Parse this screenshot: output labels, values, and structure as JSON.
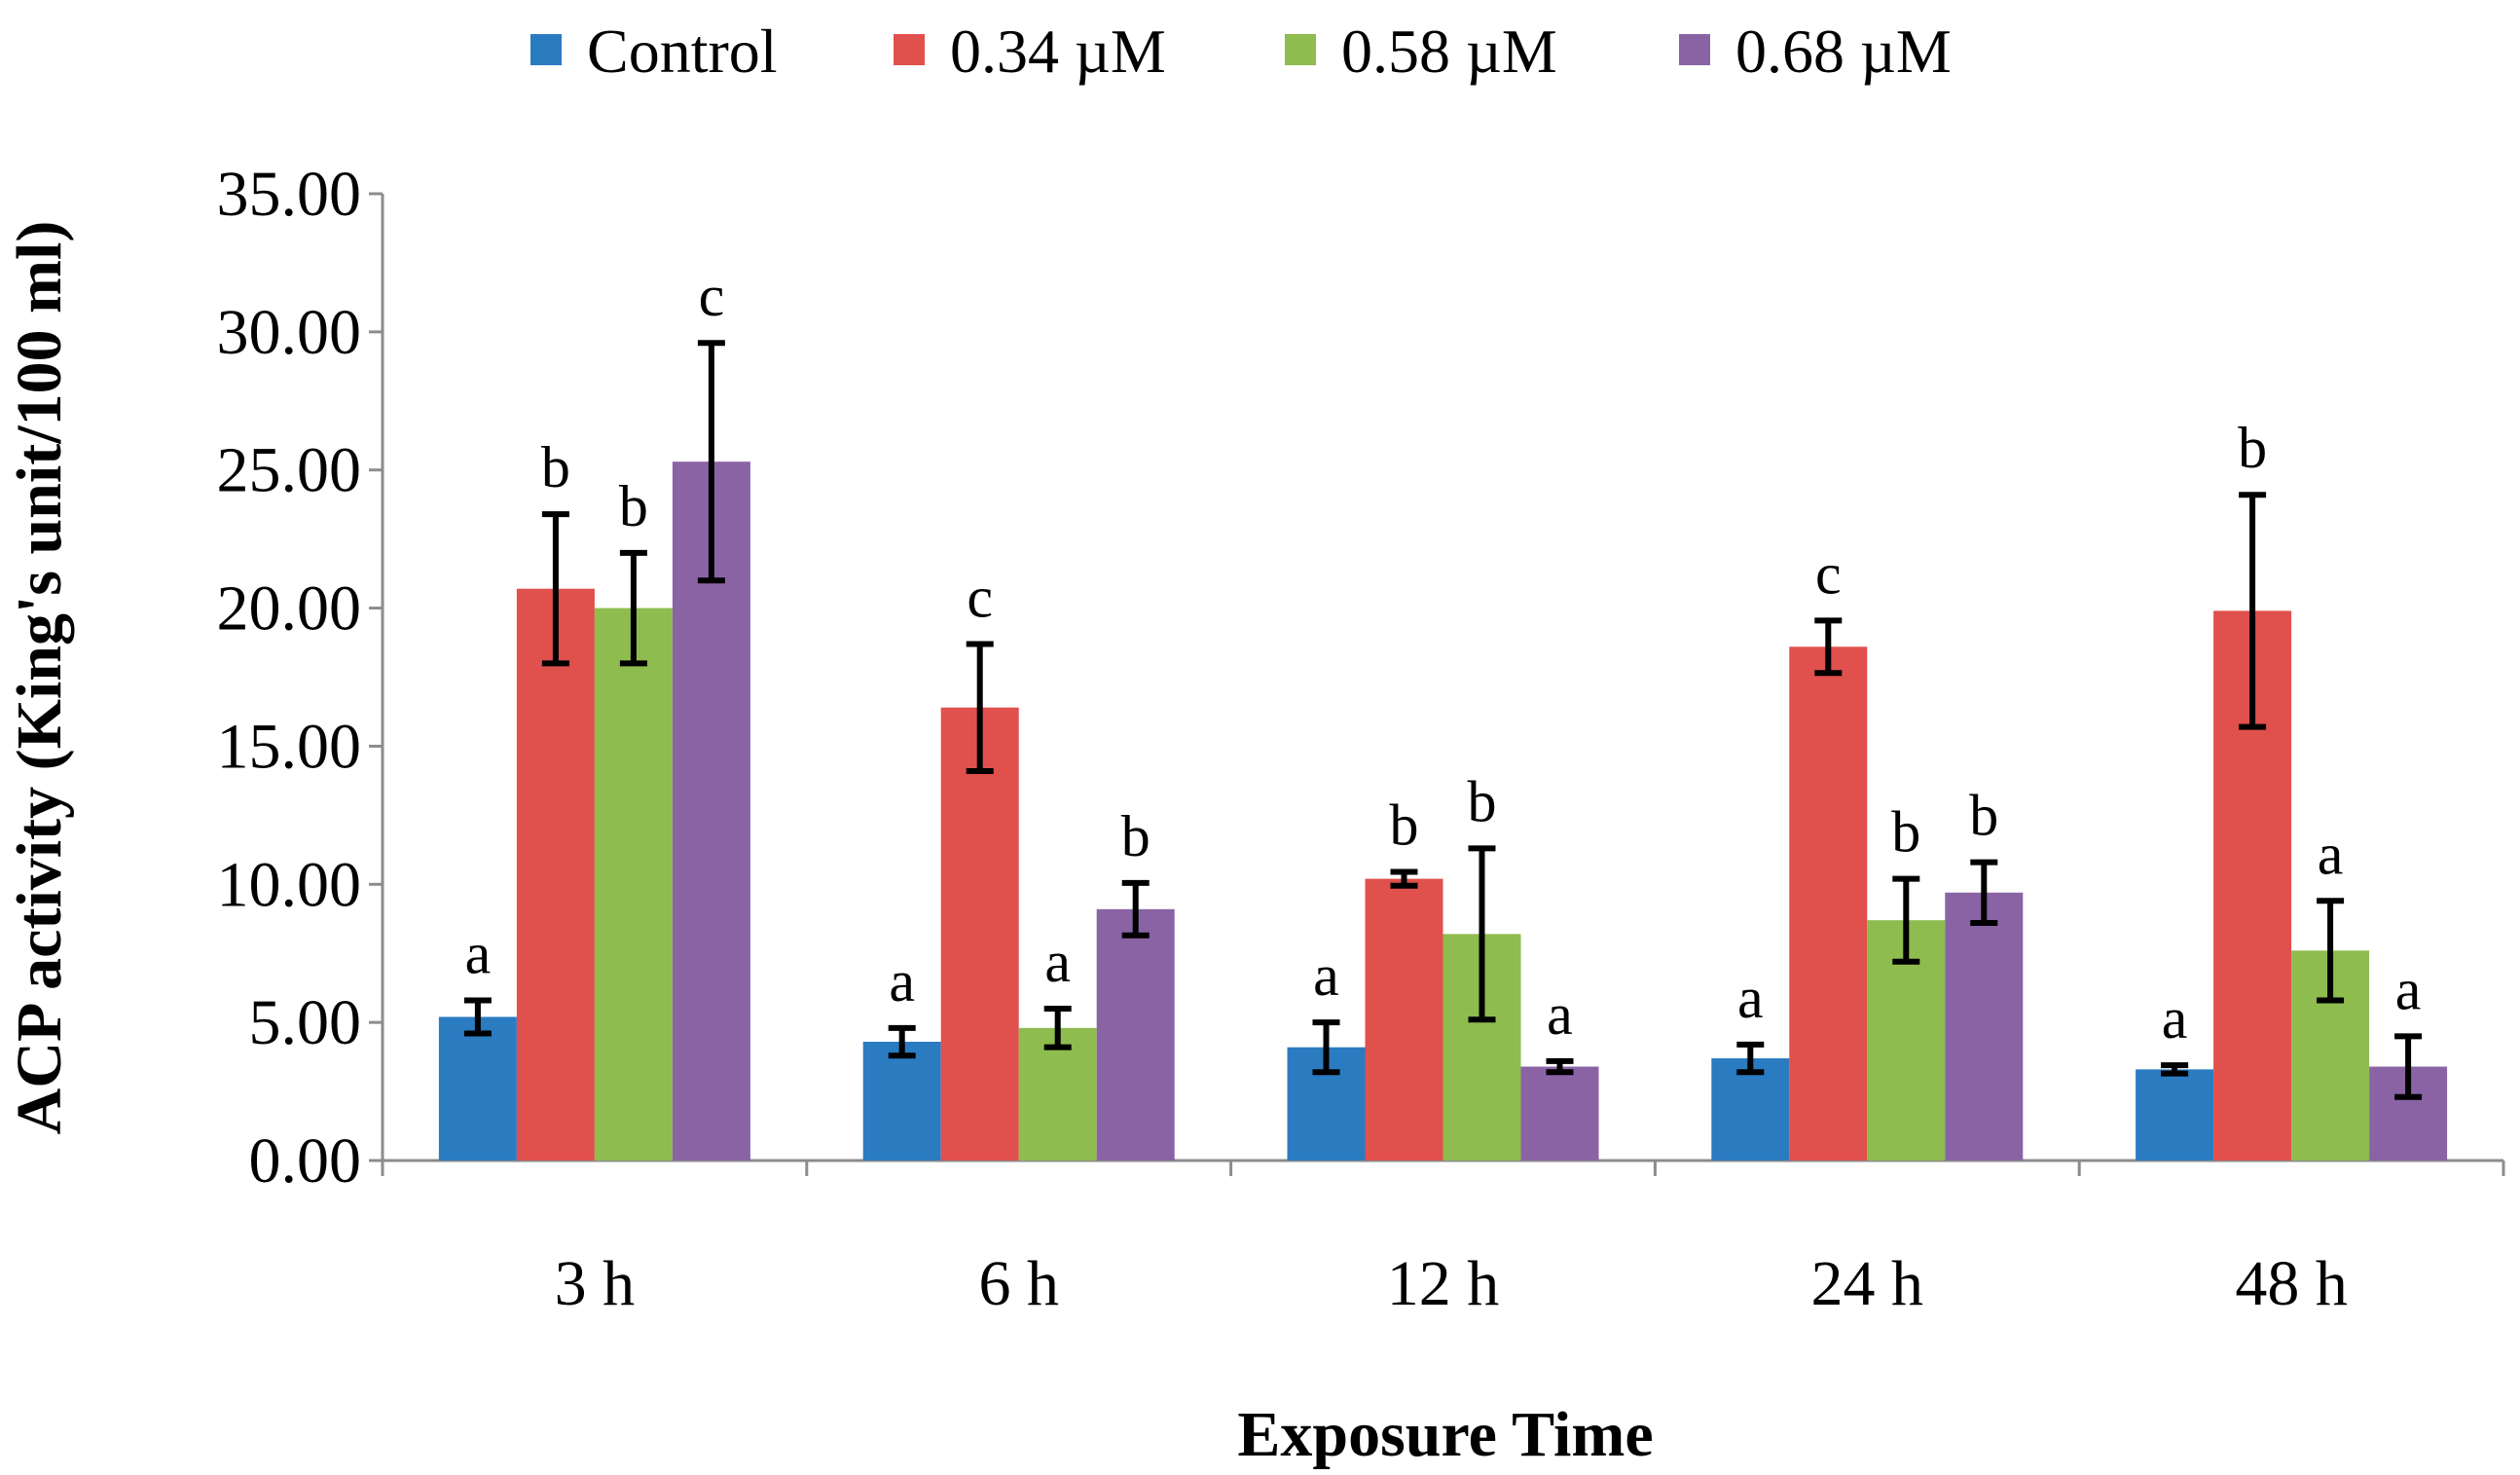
{
  "chart_data": {
    "type": "bar",
    "title": "",
    "xlabel": "Exposure Time",
    "ylabel": "ACP activity (King's unit/100 ml)",
    "ylim": [
      0,
      35
    ],
    "yticks": [
      "0.00",
      "5.00",
      "10.00",
      "15.00",
      "20.00",
      "25.00",
      "30.00",
      "35.00"
    ],
    "ytick_values": [
      0,
      5,
      10,
      15,
      20,
      25,
      30,
      35
    ],
    "categories": [
      "3 h",
      "6 h",
      "12 h",
      "24 h",
      "48 h"
    ],
    "legend_position": "top",
    "series": [
      {
        "name": "Control",
        "color": "#2b7bc1",
        "values": [
          5.2,
          4.3,
          4.1,
          3.7,
          3.3
        ],
        "errors": [
          0.6,
          0.5,
          0.9,
          0.5,
          0.15
        ],
        "labels": [
          "a",
          "a",
          "a",
          "a",
          "a"
        ]
      },
      {
        "name": "0.34 µM",
        "color": "#e0504d",
        "values": [
          20.7,
          16.4,
          10.2,
          18.6,
          19.9
        ],
        "errors": [
          2.7,
          2.3,
          0.25,
          0.95,
          4.2
        ],
        "labels": [
          "b",
          "c",
          "b",
          "c",
          "b"
        ]
      },
      {
        "name": "0.58 µM",
        "color": "#8ebc4f",
        "values": [
          20.0,
          4.8,
          8.2,
          8.7,
          7.6
        ],
        "errors": [
          2.0,
          0.7,
          3.1,
          1.5,
          1.8
        ],
        "labels": [
          "b",
          "a",
          "b",
          "b",
          "a"
        ]
      },
      {
        "name": "0.68 µM",
        "color": "#8a63a5",
        "values": [
          25.3,
          9.1,
          3.4,
          9.7,
          3.4
        ],
        "errors": [
          4.3,
          0.95,
          0.2,
          1.1,
          1.1
        ],
        "labels": [
          "c",
          "b",
          "a",
          "b",
          "a"
        ]
      }
    ]
  }
}
